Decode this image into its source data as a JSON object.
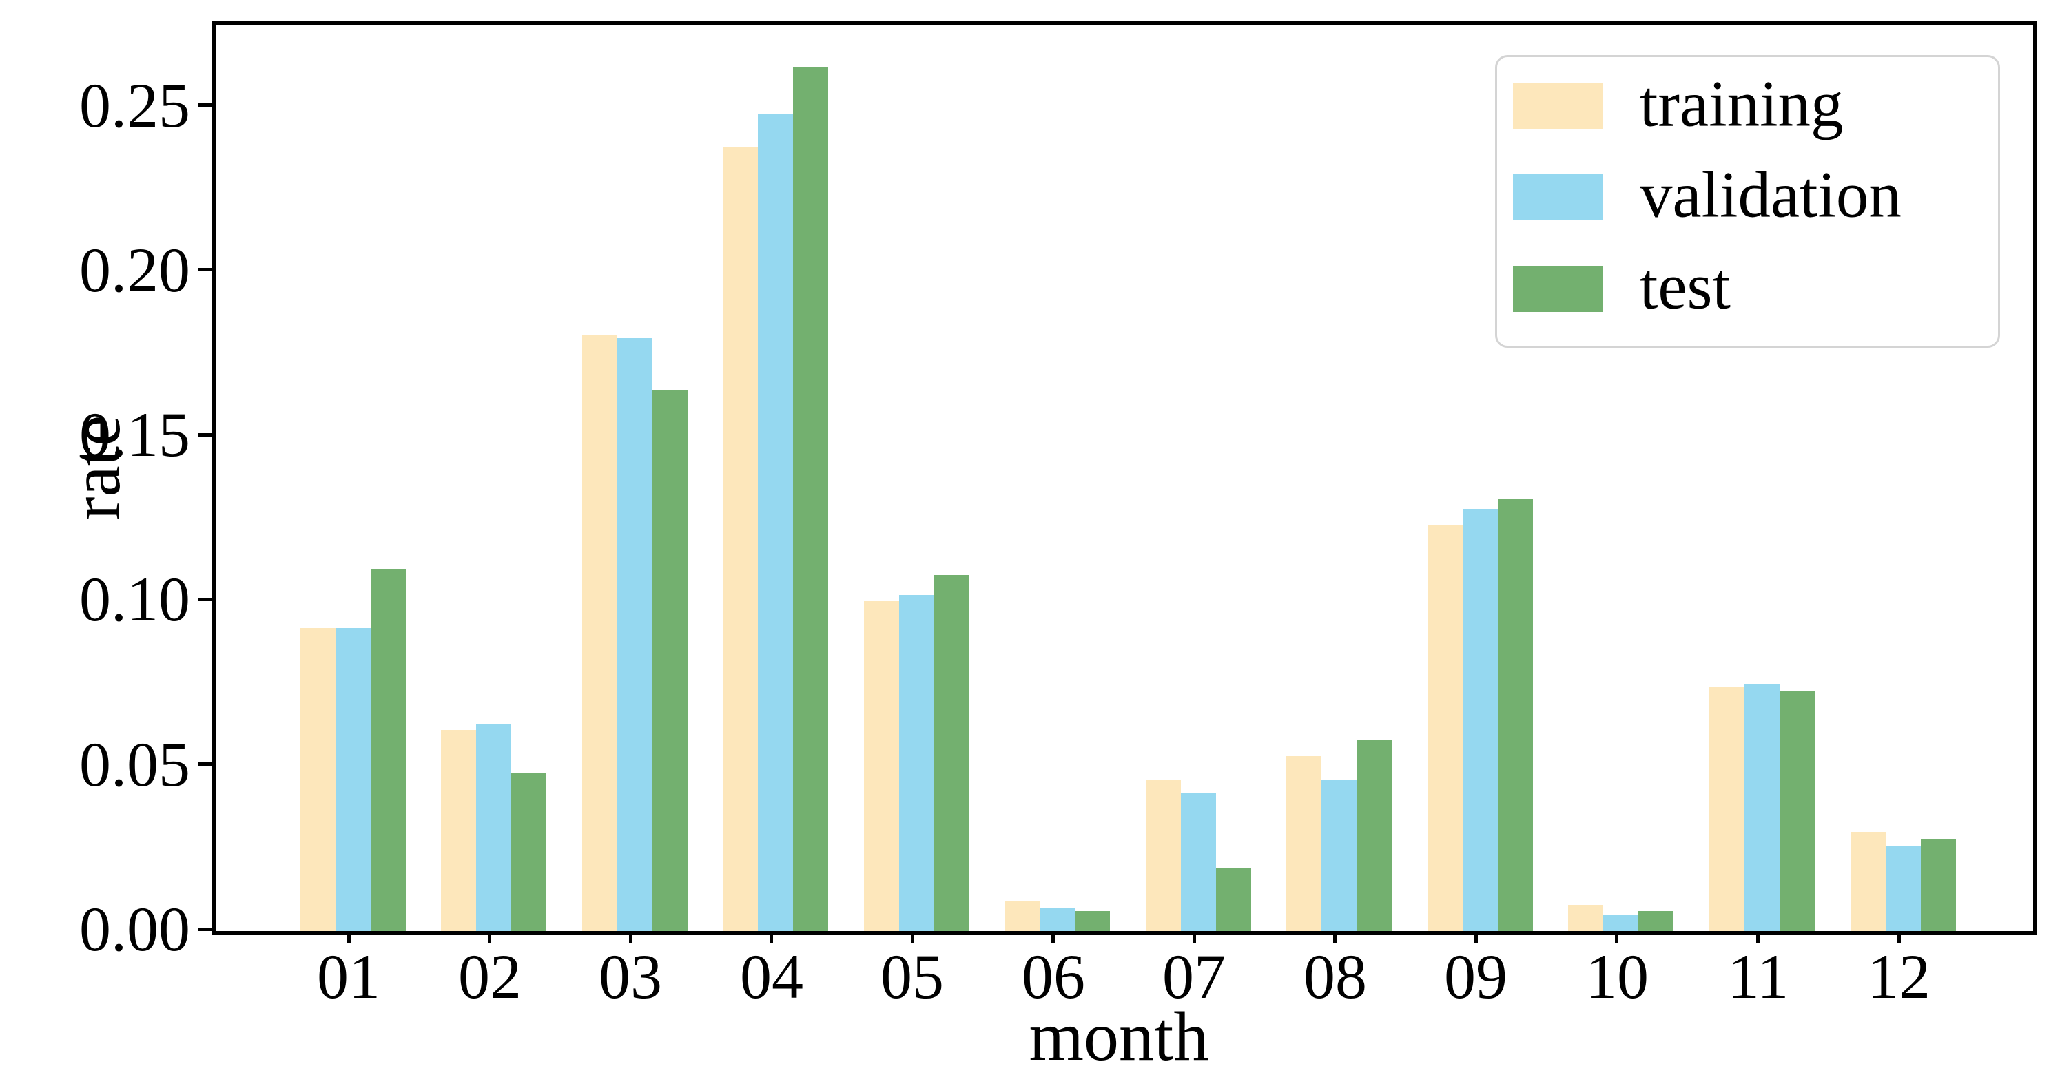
{
  "chart_data": {
    "type": "bar",
    "title": "",
    "xlabel": "month",
    "ylabel": "rate",
    "categories": [
      "01",
      "02",
      "03",
      "04",
      "05",
      "06",
      "07",
      "08",
      "09",
      "10",
      "11",
      "12"
    ],
    "series": [
      {
        "name": "training",
        "color": "#fde7bb",
        "values": [
          0.092,
          0.061,
          0.181,
          0.238,
          0.1,
          0.009,
          0.046,
          0.053,
          0.123,
          0.008,
          0.074,
          0.03
        ]
      },
      {
        "name": "validation",
        "color": "#95d8f0",
        "values": [
          0.092,
          0.063,
          0.18,
          0.248,
          0.102,
          0.007,
          0.042,
          0.046,
          0.128,
          0.005,
          0.075,
          0.026
        ]
      },
      {
        "name": "test",
        "color": "#73b06f",
        "values": [
          0.11,
          0.048,
          0.164,
          0.262,
          0.108,
          0.006,
          0.019,
          0.058,
          0.131,
          0.006,
          0.073,
          0.028
        ]
      }
    ],
    "ylim": [
      0,
      0.275
    ],
    "ytick_values": [
      0,
      0.05,
      0.1,
      0.15,
      0.2,
      0.25
    ],
    "ytick_labels": [
      "0.00",
      "0.05",
      "0.10",
      "0.15",
      "0.20",
      "0.25"
    ],
    "grid": false,
    "legend_position": "upper right",
    "axis_color": "#000000",
    "background_color": "#ffffff"
  }
}
